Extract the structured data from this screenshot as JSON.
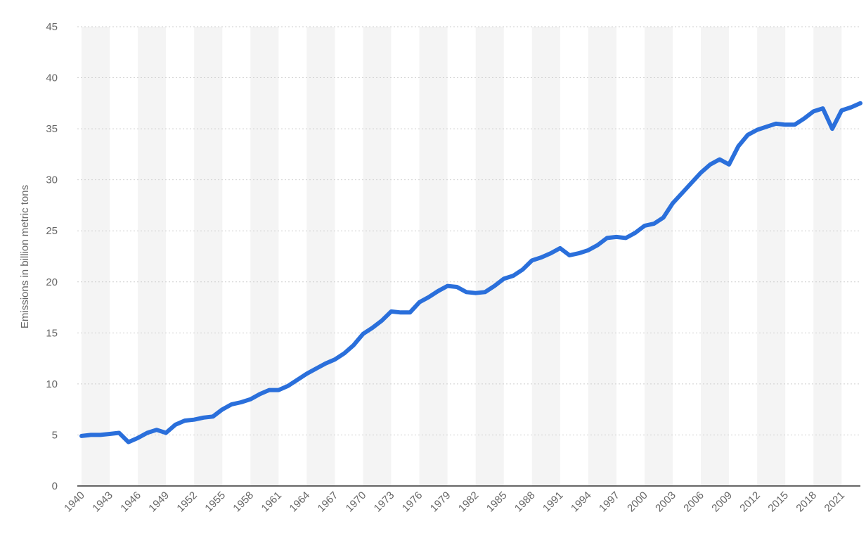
{
  "chart_data": {
    "type": "line",
    "title": "",
    "xlabel": "",
    "ylabel": "Emissions in billion metric tons",
    "xlim": [
      1940,
      2023
    ],
    "ylim": [
      0,
      45
    ],
    "y_ticks": [
      0,
      5,
      10,
      15,
      20,
      25,
      30,
      35,
      40,
      45
    ],
    "x_tick_labels": [
      "1940",
      "1943",
      "1946",
      "1949",
      "1952",
      "1955",
      "1958",
      "1961",
      "1964",
      "1967",
      "1970",
      "1973",
      "1976",
      "1979",
      "1982",
      "1985",
      "1988",
      "1991",
      "1994",
      "1997",
      "2000",
      "2003",
      "2006",
      "2009",
      "2012",
      "2015",
      "2018",
      "2021"
    ],
    "grid": true,
    "alternating_year_bands": true,
    "line_color": "#2a6fdb",
    "series": [
      {
        "x": [
          1940,
          1941,
          1942,
          1943,
          1944,
          1945,
          1946,
          1947,
          1948,
          1949,
          1950,
          1951,
          1952,
          1953,
          1954,
          1955,
          1956,
          1957,
          1958,
          1959,
          1960,
          1961,
          1962,
          1963,
          1964,
          1965,
          1966,
          1967,
          1968,
          1969,
          1970,
          1971,
          1972,
          1973,
          1974,
          1975,
          1976,
          1977,
          1978,
          1979,
          1980,
          1981,
          1982,
          1983,
          1984,
          1985,
          1986,
          1987,
          1988,
          1989,
          1990,
          1991,
          1992,
          1993,
          1994,
          1995,
          1996,
          1997,
          1998,
          1999,
          2000,
          2001,
          2002,
          2003,
          2004,
          2005,
          2006,
          2007,
          2008,
          2009,
          2010,
          2011,
          2012,
          2013,
          2014,
          2015,
          2016,
          2017,
          2018,
          2019,
          2020,
          2021,
          2022,
          2023
        ],
        "values": [
          4.9,
          5.0,
          5.0,
          5.1,
          5.2,
          4.3,
          4.7,
          5.2,
          5.5,
          5.2,
          6.0,
          6.4,
          6.5,
          6.7,
          6.8,
          7.5,
          8.0,
          8.2,
          8.5,
          9.0,
          9.4,
          9.4,
          9.8,
          10.4,
          11.0,
          11.5,
          12.0,
          12.4,
          13.0,
          13.8,
          14.9,
          15.5,
          16.2,
          17.1,
          17.0,
          17.0,
          18.0,
          18.5,
          19.1,
          19.6,
          19.5,
          19.0,
          18.9,
          19.0,
          19.6,
          20.3,
          20.6,
          21.2,
          22.1,
          22.4,
          22.8,
          23.3,
          22.6,
          22.8,
          23.1,
          23.6,
          24.3,
          24.4,
          24.3,
          24.8,
          25.5,
          25.7,
          26.3,
          27.7,
          28.7,
          29.7,
          30.7,
          31.5,
          32.0,
          31.5,
          33.3,
          34.4,
          34.9,
          35.2,
          35.5,
          35.4,
          35.4,
          36.0,
          36.7,
          37.0,
          35.0,
          36.8,
          37.1,
          37.5
        ]
      }
    ]
  }
}
